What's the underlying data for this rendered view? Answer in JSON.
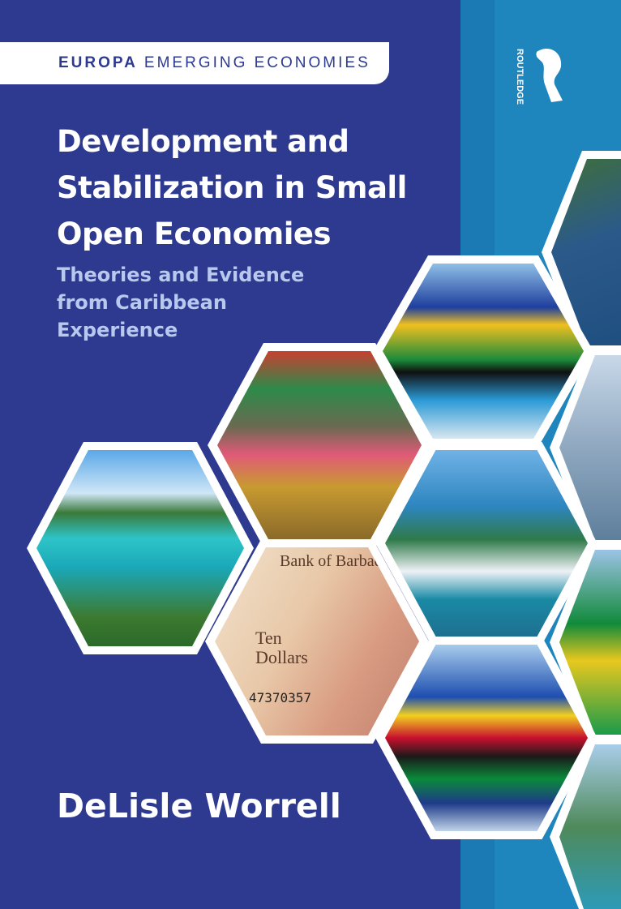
{
  "series": {
    "bold": "EUROPA",
    "rest": "EMERGING ECONOMIES"
  },
  "publisher": "ROUTLEDGE",
  "title_lines": [
    "Development and",
    "Stabilization in Small",
    "Open Economies"
  ],
  "subtitle_lines": [
    "Theories and Evidence",
    "from Caribbean",
    "Experience"
  ],
  "author": "DeLisle Worrell",
  "banknote": {
    "bank": "Bank of Barbados",
    "denomination": "Ten Dollars",
    "serial": "47370357"
  },
  "colors": {
    "background": "#2d3a8f",
    "spine_strip": "#1f85bd",
    "subtitle": "#b9c8ef"
  }
}
